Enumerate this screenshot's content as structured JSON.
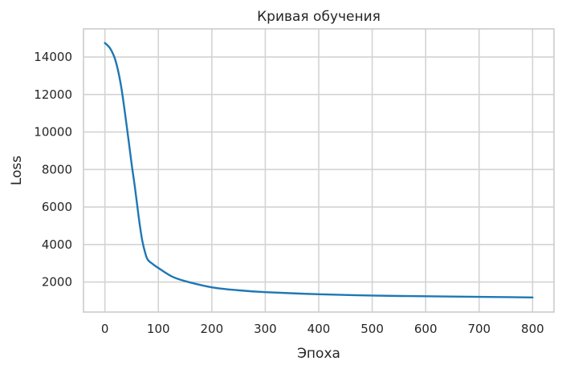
{
  "chart_data": {
    "type": "line",
    "title": "Кривая обучения",
    "xlabel": "Эпоха",
    "ylabel": "Loss",
    "xlim": [
      -40,
      840
    ],
    "ylim": [
      400,
      15500
    ],
    "xticks": [
      0,
      100,
      200,
      300,
      400,
      500,
      600,
      700,
      800
    ],
    "yticks": [
      2000,
      4000,
      6000,
      8000,
      10000,
      12000,
      14000
    ],
    "grid": true,
    "colors": {
      "series": "#1f77b4",
      "grid": "#d3d3d3",
      "frame": "#cccccc"
    },
    "series": [
      {
        "x": [
          0,
          10,
          20,
          30,
          40,
          50,
          55,
          60,
          65,
          70,
          75,
          80,
          90,
          100,
          125,
          150,
          200,
          250,
          300,
          400,
          500,
          600,
          700,
          800
        ],
        "y": [
          14750,
          14450,
          13800,
          12500,
          10500,
          8300,
          7300,
          6200,
          5100,
          4200,
          3600,
          3200,
          2950,
          2750,
          2300,
          2050,
          1720,
          1560,
          1460,
          1350,
          1280,
          1240,
          1210,
          1180
        ]
      }
    ]
  }
}
